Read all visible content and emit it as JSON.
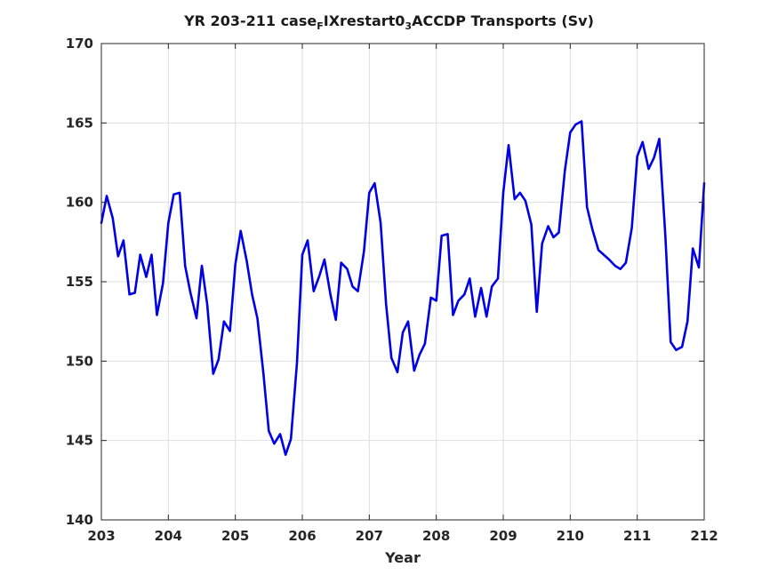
{
  "chart_data": {
    "type": "line",
    "title_parts": {
      "prefix": "YR 203-211 case",
      "sub1": "F",
      "middle": "IXrestart0",
      "sub2": "3",
      "suffix": "ACCDP Transports (Sv)"
    },
    "xlabel": "Year",
    "ylabel": "",
    "xlim": [
      203,
      212
    ],
    "ylim": [
      140,
      170
    ],
    "x_ticks": [
      "203",
      "204",
      "205",
      "206",
      "207",
      "208",
      "209",
      "210",
      "211",
      "212"
    ],
    "y_ticks": [
      "140",
      "145",
      "150",
      "155",
      "160",
      "165",
      "170"
    ],
    "grid": true,
    "line_color": "#0000e6",
    "series": [
      {
        "x": [
          203.0,
          203.08,
          203.17,
          203.25,
          203.33,
          203.42,
          203.5,
          203.58,
          203.67,
          203.75,
          203.83,
          203.92,
          204.0,
          204.08,
          204.17,
          204.25,
          204.33,
          204.42,
          204.5,
          204.58,
          204.67,
          204.75,
          204.83,
          204.92,
          205.0,
          205.08,
          205.17,
          205.25,
          205.33,
          205.42,
          205.5,
          205.58,
          205.67,
          205.75,
          205.83,
          205.92,
          206.0,
          206.08,
          206.17,
          206.25,
          206.33,
          206.42,
          206.5,
          206.58,
          206.67,
          206.75,
          206.83,
          206.92,
          207.0,
          207.08,
          207.17,
          207.25,
          207.33,
          207.42,
          207.5,
          207.58,
          207.67,
          207.75,
          207.83,
          207.92,
          208.0,
          208.08,
          208.17,
          208.25,
          208.33,
          208.42,
          208.5,
          208.58,
          208.67,
          208.75,
          208.83,
          208.92,
          209.0,
          209.08,
          209.17,
          209.25,
          209.33,
          209.42,
          209.5,
          209.58,
          209.67,
          209.75,
          209.83,
          209.92,
          210.0,
          210.08,
          210.17,
          210.25,
          210.33,
          210.42,
          210.5,
          210.58,
          210.67,
          210.75,
          210.83,
          210.92,
          211.0,
          211.08,
          211.17,
          211.25,
          211.33,
          211.42,
          211.5,
          211.58,
          211.67,
          211.75,
          211.83,
          211.92,
          212.0
        ],
        "y": [
          158.7,
          160.4,
          159.0,
          156.6,
          157.6,
          154.2,
          154.3,
          156.7,
          155.3,
          156.7,
          152.9,
          154.9,
          158.7,
          160.5,
          160.6,
          156.0,
          154.3,
          152.7,
          156.0,
          153.6,
          149.2,
          150.1,
          152.5,
          151.9,
          156.1,
          158.2,
          156.3,
          154.2,
          152.7,
          149.2,
          145.6,
          144.8,
          145.4,
          144.1,
          145.1,
          149.9,
          156.7,
          157.6,
          154.4,
          155.3,
          156.4,
          154.2,
          152.6,
          156.2,
          155.8,
          154.7,
          154.4,
          156.9,
          160.6,
          161.2,
          158.7,
          153.6,
          150.2,
          149.3,
          151.8,
          152.5,
          149.4,
          150.4,
          151.1,
          154.0,
          153.8,
          157.9,
          158.0,
          152.9,
          153.8,
          154.2,
          155.2,
          152.8,
          154.6,
          152.8,
          154.7,
          155.2,
          160.6,
          163.6,
          160.2,
          160.6,
          160.1,
          158.6,
          153.1,
          157.4,
          158.5,
          157.8,
          158.1,
          162.0,
          164.4,
          164.9,
          165.1,
          159.7,
          158.3,
          157.0,
          156.7,
          156.4,
          156.0,
          155.8,
          156.2,
          158.4,
          162.9,
          163.8,
          162.1,
          162.8,
          164.0,
          157.9,
          151.2,
          150.7,
          150.9,
          152.5,
          157.1,
          155.9,
          161.2
        ]
      }
    ]
  }
}
